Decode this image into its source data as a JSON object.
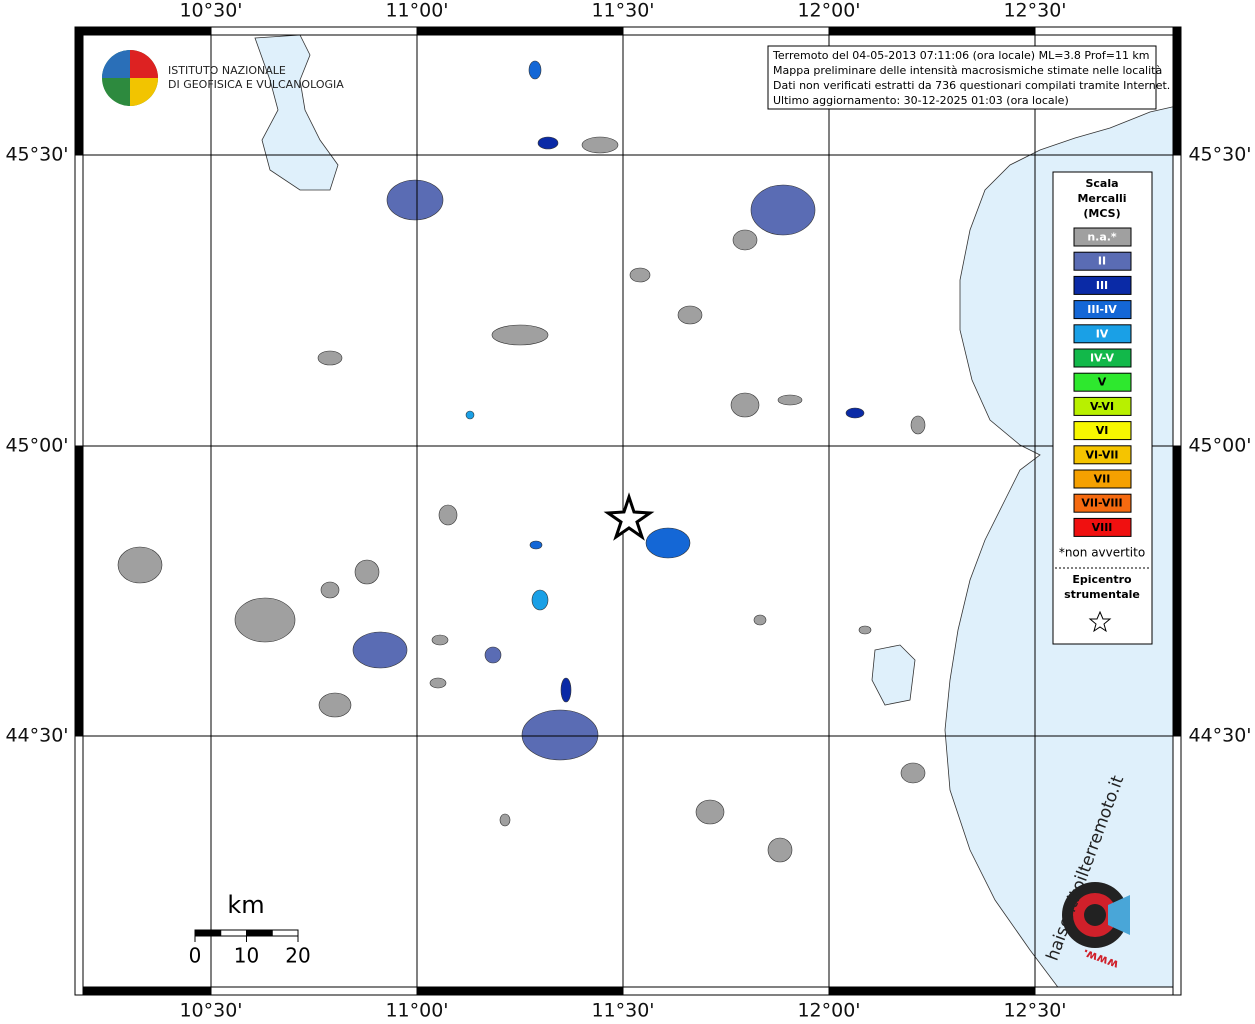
{
  "map": {
    "lon_labels": [
      "10°30'",
      "11°00'",
      "11°30'",
      "12°00'",
      "12°30'"
    ],
    "lat_labels": [
      "45°30'",
      "45°00'",
      "44°30'"
    ],
    "info": [
      "Terremoto del 04-05-2013 07:11:06 (ora locale) ML=3.8 Prof=11 km",
      "Mappa preliminare delle intensità macrosismiche stimate nelle località",
      "Dati non verificati estratti da 736 questionari compilati tramite Internet.",
      "Ultimo aggiornamento: 30-12-2025 01:03 (ora locale)"
    ],
    "logo": [
      "ISTITUTO NAZIONALE",
      "DI GEOFISICA E VULCANOLOGIA"
    ],
    "legend": {
      "title": [
        "Scala",
        "Mercalli",
        "(MCS)"
      ],
      "items": [
        {
          "label": "n.a.*",
          "color": "#a0a0a0"
        },
        {
          "label": "II",
          "color": "#5a6cb4"
        },
        {
          "label": "III",
          "color": "#0a2aa6"
        },
        {
          "label": "III-IV",
          "color": "#1467d6"
        },
        {
          "label": "IV",
          "color": "#1aa0e6"
        },
        {
          "label": "IV-V",
          "color": "#12b84a"
        },
        {
          "label": "V",
          "color": "#2ee82e"
        },
        {
          "label": "V-VI",
          "color": "#b8f000"
        },
        {
          "label": "VI",
          "color": "#f7f700"
        },
        {
          "label": "VI-VII",
          "color": "#f5c400"
        },
        {
          "label": "VII",
          "color": "#f5a000"
        },
        {
          "label": "VII-VIII",
          "color": "#f56a10"
        },
        {
          "label": "VIII",
          "color": "#f01010"
        }
      ],
      "note": "*non avvertito",
      "epicenter": [
        "Epicentro",
        "strumentale"
      ]
    },
    "scale_bar": {
      "unit": "km",
      "ticks": [
        0,
        10,
        20
      ]
    },
    "site": {
      "name": "haisentitoilterremoto.it",
      "www": "www."
    }
  }
}
